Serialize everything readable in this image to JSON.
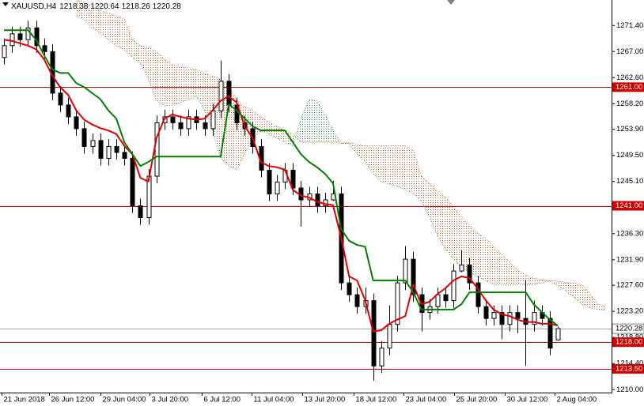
{
  "chart_data": {
    "type": "candlestick",
    "title": "XAUUSD,H4",
    "ylim": [
      1209.5,
      1275.7
    ],
    "yticks": [
      {
        "value": 1271.4,
        "label": "1271.40"
      },
      {
        "value": 1267,
        "label": "1267.00"
      },
      {
        "value": 1262.6,
        "label": "1262.60"
      },
      {
        "value": 1258.2,
        "label": "1258.20"
      },
      {
        "value": 1253.9,
        "label": "1253.90"
      },
      {
        "value": 1249.5,
        "label": "1249.50"
      },
      {
        "value": 1245.1,
        "label": "1245.10"
      },
      {
        "value": 1240.8,
        "label": "1240.80"
      },
      {
        "value": 1236.3,
        "label": "1236.30"
      },
      {
        "value": 1231.9,
        "label": "1231.90"
      },
      {
        "value": 1227.6,
        "label": "1227.60"
      },
      {
        "value": 1223.2,
        "label": "1223.20"
      },
      {
        "value": 1218.8,
        "label": "1218.80"
      },
      {
        "value": 1214.4,
        "label": "1214.40"
      },
      {
        "value": 1210,
        "label": "1210.00"
      }
    ],
    "xticks": [
      {
        "value": -0.3,
        "label": "21 Jun 2018"
      },
      {
        "value": 5.6,
        "label": "26 Jun 12:00"
      },
      {
        "value": 12.0,
        "label": "29 Jun 04:00"
      },
      {
        "value": 18.1,
        "label": "3 Jul 20:00"
      },
      {
        "value": 24.6,
        "label": "6 Jul 12:00"
      },
      {
        "value": 30.9,
        "label": "11 Jul 04:00"
      },
      {
        "value": 37.2,
        "label": "13 Jul 20:00"
      },
      {
        "value": 43.6,
        "label": "18 Jul 12:00"
      },
      {
        "value": 49.8,
        "label": "23 Jul 04:00"
      },
      {
        "value": 56.1,
        "label": "25 Jul 20:00"
      },
      {
        "value": 62.4,
        "label": "30 Jul 12:00"
      },
      {
        "value": 68.6,
        "label": "2 Aug 04:00"
      }
    ],
    "candles": {
      "open": [
        1266,
        1268,
        1270,
        1269,
        1271,
        1268,
        1267,
        1260,
        1258,
        1256,
        1254,
        1251,
        1252,
        1249,
        1251,
        1250,
        1249,
        1241,
        1239,
        1246,
        1255,
        1256,
        1255,
        1254,
        1256,
        1255,
        1254,
        1257,
        1262,
        1258,
        1255,
        1254,
        1251,
        1247,
        1243,
        1245,
        1247,
        1244,
        1242,
        1243,
        1241,
        1242,
        1243,
        1228,
        1226,
        1224,
        1225,
        1214,
        1217,
        1221,
        1228,
        1232,
        1226,
        1223,
        1224,
        1226,
        1225,
        1230,
        1231,
        1228,
        1224,
        1222,
        1223,
        1221,
        1223,
        1222,
        1221,
        1223,
        1222,
        1218.38
      ],
      "high": [
        1269.2,
        1271.2,
        1271.2,
        1272.2,
        1272.2,
        1269.2,
        1268.2,
        1261.2,
        1259.2,
        1257.2,
        1255.2,
        1253.2,
        1253.2,
        1252.2,
        1252.2,
        1251.2,
        1250.2,
        1242.2,
        1247.2,
        1256.2,
        1257.2,
        1257.2,
        1256.2,
        1257.2,
        1257.2,
        1256.2,
        1258.2,
        1265.5,
        1263.2,
        1259.2,
        1256.2,
        1255.2,
        1252.2,
        1248.2,
        1246.2,
        1248.2,
        1248.2,
        1245.2,
        1244.2,
        1244.2,
        1243.2,
        1245.2,
        1244.2,
        1229.2,
        1227.2,
        1227.2,
        1226.2,
        1218.2,
        1224.2,
        1229.2,
        1234.2,
        1233.2,
        1227.2,
        1225.2,
        1227.2,
        1227.2,
        1231.2,
        1233.5,
        1232.2,
        1229.2,
        1225.2,
        1224.2,
        1224.2,
        1224.2,
        1224.2,
        1228.5,
        1225,
        1224.2,
        1223.2,
        1220.64
      ],
      "low": [
        1264.8,
        1266.8,
        1267.8,
        1267.8,
        1266.8,
        1265.8,
        1258.8,
        1256.8,
        1254.8,
        1252.8,
        1249.8,
        1249.8,
        1247.8,
        1247.8,
        1248.8,
        1247.8,
        1239.8,
        1237.8,
        1237.8,
        1244.8,
        1253.8,
        1253.8,
        1252.8,
        1252.8,
        1253.8,
        1252.8,
        1252.8,
        1255.8,
        1256.8,
        1253.8,
        1252.8,
        1249.8,
        1245.8,
        1241.8,
        1241.8,
        1243.8,
        1242.8,
        1237.5,
        1240.8,
        1239.8,
        1239.8,
        1241.8,
        1226.8,
        1224.8,
        1222.8,
        1222.8,
        1211.5,
        1212.8,
        1215.8,
        1219.8,
        1226.8,
        1224.8,
        1219.8,
        1221.8,
        1222.8,
        1223.8,
        1223.8,
        1229.8,
        1226.8,
        1222.8,
        1220.8,
        1220.8,
        1218.5,
        1219.8,
        1219.5,
        1214,
        1219.8,
        1220.8,
        1215.8,
        1218.26
      ],
      "close": [
        1268,
        1270,
        1269,
        1271,
        1268,
        1267,
        1260,
        1258,
        1256,
        1254,
        1251,
        1252,
        1249,
        1251,
        1250,
        1249,
        1241,
        1239,
        1246,
        1255,
        1256,
        1255,
        1254,
        1256,
        1255,
        1254,
        1257,
        1262,
        1258,
        1255,
        1254,
        1251,
        1247,
        1243,
        1245,
        1247,
        1244,
        1242,
        1243,
        1241,
        1242,
        1243,
        1228,
        1226,
        1224,
        1225,
        1214,
        1217,
        1221,
        1228,
        1232,
        1226,
        1223,
        1224,
        1226,
        1225,
        1230,
        1231,
        1228,
        1224,
        1222,
        1223,
        1221,
        1223,
        1222,
        1221,
        1223,
        1222,
        1217,
        1220.28
      ],
      "bull_color": "#ffffff",
      "bear_color": "#000000",
      "wick_color": "#000000"
    },
    "series": [
      {
        "color": "#e00000",
        "values": [
          1269.0,
          1268.8,
          1268.4,
          1268.0,
          1267.4,
          1265.7,
          1263.0,
          1261.0,
          1259.7,
          1257.1,
          1255.5,
          1254.7,
          1254.1,
          1253.7,
          1253.1,
          1251.1,
          1249.7,
          1245.7,
          1245.1,
          1252.4,
          1255.7,
          1256.4,
          1256.0,
          1255.7,
          1255.5,
          1255.7,
          1257.1,
          1258.7,
          1259.5,
          1258.4,
          1254.4,
          1252.4,
          1248.4,
          1247.7,
          1247.5,
          1247.1,
          1243.7,
          1242.7,
          1242.4,
          1241.7,
          1241.3,
          1241.1,
          1235.7,
          1229.1,
          1228.4,
          1225.1,
          1219.8,
          1220.0,
          1221.1,
          1221.8,
          1222.4,
          1227.7,
          1224.4,
          1224.8,
          1226.1,
          1227.1,
          1228.4,
          1229.1,
          1228.8,
          1227.1,
          1225.1,
          1223.5,
          1222.7,
          1222.4,
          1221.8,
          1221.4,
          1221.4,
          1221.1,
          1221.1,
          1220.8
        ]
      },
      {
        "color": "#008000",
        "values": [
          1270.6,
          1270.6,
          1270.6,
          1270.6,
          1269.0,
          1266.4,
          1264.0,
          1263.4,
          1263.4,
          1261.7,
          1261.0,
          1260.0,
          1259.0,
          1257.1,
          1255.7,
          1251.7,
          1249.7,
          1247.7,
          1248.4,
          1249.3,
          1249.3,
          1249.3,
          1249.3,
          1249.3,
          1249.3,
          1249.3,
          1249.3,
          1249.3,
          1258.1,
          1257.1,
          1255.7,
          1254.4,
          1253.7,
          1253.7,
          1253.7,
          1253.7,
          1251.7,
          1249.7,
          1248.4,
          1247.5,
          1246.4,
          1244.8,
          1237.1,
          1235.1,
          1234.4,
          1234.1,
          1228.4,
          1228.4,
          1228.4,
          1228.4,
          1228.4,
          1226.4,
          1223.5,
          1223.5,
          1223.5,
          1223.5,
          1223.5,
          1224.4,
          1226.4,
          1226.4,
          1226.4,
          1226.4,
          1226.4,
          1226.4,
          1226.4,
          1226.4,
          1224.4,
          1223.1,
          1221.8,
          1220.8
        ]
      }
    ],
    "cloud": {
      "span_a": [
        null,
        null,
        null,
        null,
        null,
        null,
        null,
        null,
        null,
        1273.0,
        1272.4,
        1271.0,
        1270.1,
        1269.0,
        1268.0,
        1267.3,
        1266.1,
        1265.0,
        1262.4,
        1258.7,
        1257.9,
        1257.9,
        1258.4,
        1258.9,
        1259.5,
        1257.1,
        1253.7,
        1249.1,
        1247.7,
        1247.1,
        1249.7,
        1252.4,
        1253.6,
        1253.1,
        1252.4,
        1251.7,
        1251.1,
        1255.7,
        1258.9,
        1258.7,
        1256.4,
        1253.7,
        1251.5,
        1251.5,
        1249.7,
        1248.4,
        1246.4,
        1245.1,
        1244.7,
        1244.3,
        1243.7,
        1243.1,
        1241.7,
        1239.1,
        1236.0,
        1233.7,
        1232.0,
        1230.7,
        1229.7,
        1229.1,
        1228.4,
        1227.7,
        1227.7,
        1227.7,
        1227.7,
        1227.7,
        1227.7,
        1228.0,
        1228.3,
        1227.5,
        1226.7,
        1225.6,
        1224.4,
        1223.8,
        1223.5,
        1223.4
      ],
      "span_b": [
        null,
        null,
        null,
        null,
        null,
        null,
        null,
        null,
        null,
        1275.7,
        1275.3,
        1274.6,
        1274.0,
        1273.4,
        1273.0,
        1272.5,
        1269.0,
        1268.0,
        1267.7,
        1267.0,
        1265.7,
        1264.8,
        1264.5,
        1264.2,
        1264.0,
        1263.3,
        1262.9,
        1262.4,
        1261.3,
        1258.7,
        1257.7,
        1257.1,
        1256.0,
        1255.1,
        1254.4,
        1253.7,
        1253.1,
        1251.7,
        1251.7,
        1251.7,
        1251.7,
        1251.7,
        1251.7,
        1251.7,
        1251.3,
        1251.1,
        1251.1,
        1251.1,
        1251.1,
        1251.1,
        1251.1,
        1250.4,
        1246.1,
        1244.8,
        1243.5,
        1242.4,
        1240.8,
        1239.1,
        1237.7,
        1236.4,
        1235.5,
        1234.1,
        1232.8,
        1231.5,
        1230.1,
        1229.3,
        1228.8,
        1228.5,
        1228.4,
        1228.3,
        1228.1,
        1228.0,
        1227.7,
        1226.2,
        1224.4,
        1224.0
      ],
      "bull_color": "#2e8b57",
      "bear_color": "#cc5a1e"
    },
    "levels": [
      {
        "value": 1261,
        "label": "1261.00"
      },
      {
        "value": 1241,
        "label": "1241.00"
      },
      {
        "value": 1218,
        "label": "1218.00"
      },
      {
        "value": 1213.5,
        "label": "1213.50"
      }
    ],
    "level_color": "#d00000",
    "price_line_color": "#9fb09f"
  }
}
